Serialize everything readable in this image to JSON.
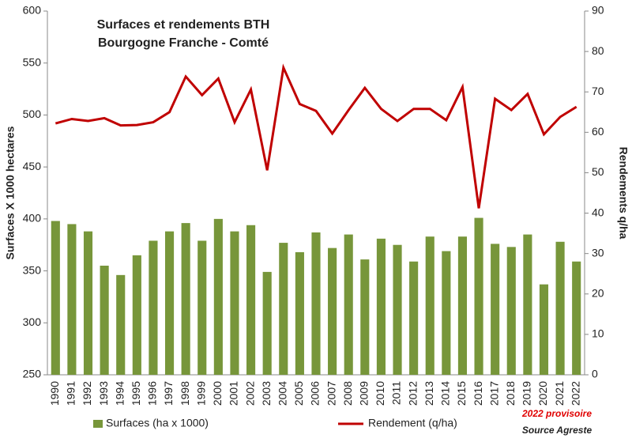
{
  "chart_data": {
    "type": "combo",
    "title": "Surfaces et rendements BTH",
    "subtitle": "Bourgogne Franche - Comté",
    "y_label": "Surfaces X 1000 hectares",
    "y2_label": "Rendements q/ha",
    "categories": [
      "1990",
      "1991",
      "1992",
      "1993",
      "1994",
      "1995",
      "1996",
      "1997",
      "1998",
      "1999",
      "2000",
      "2001",
      "2002",
      "2003",
      "2004",
      "2005",
      "2006",
      "2007",
      "2008",
      "2009",
      "2010",
      "2011",
      "2012",
      "2013",
      "2014",
      "2015",
      "2016",
      "2017",
      "2018",
      "2019",
      "2020",
      "2021",
      "2022"
    ],
    "series": [
      {
        "name": "Surfaces (ha x 1000)",
        "type": "bar",
        "color": "#77963a",
        "values": [
          398,
          395,
          388,
          355,
          346,
          365,
          379,
          388,
          396,
          379,
          400,
          388,
          394,
          349,
          377,
          368,
          387,
          372,
          385,
          361,
          381,
          375,
          359,
          383,
          369,
          383,
          401,
          376,
          373,
          385,
          337,
          378,
          359
        ]
      },
      {
        "name": "Rendement (q/ha)",
        "type": "line",
        "axis": "y2",
        "color": "#c00000",
        "values": [
          62.2,
          63.3,
          62.8,
          63.5,
          61.7,
          61.8,
          62.5,
          65,
          73.8,
          69.2,
          73.3,
          62.5,
          70.6,
          50.6,
          76,
          67,
          65.3,
          59.7,
          65.5,
          71,
          65.8,
          62.8,
          65.8,
          65.8,
          63,
          71.2,
          41.2,
          68.3,
          65.5,
          69.5,
          59.5,
          63.8,
          66.3
        ]
      }
    ],
    "ylim": [
      250,
      600
    ],
    "yticks": [
      250,
      300,
      350,
      400,
      450,
      500,
      550,
      600
    ],
    "y2lim": [
      0,
      90
    ],
    "y2ticks": [
      0,
      10,
      20,
      30,
      40,
      50,
      60,
      70,
      80,
      90
    ],
    "grid": false,
    "annotations": [
      "2022 provisoire",
      "Source Agreste"
    ]
  }
}
